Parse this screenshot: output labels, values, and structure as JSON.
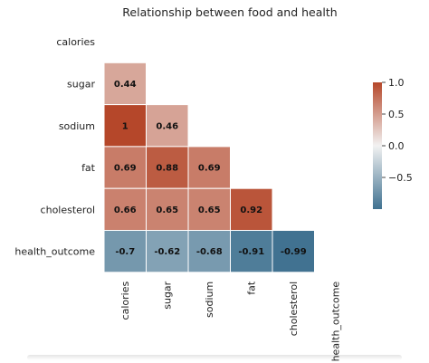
{
  "chart_data": {
    "type": "heatmap",
    "title": "Relationship between food and health",
    "variables": [
      "calories",
      "sugar",
      "sodium",
      "fat",
      "cholesterol",
      "health_outcome"
    ],
    "lower_triangle_values": [
      [],
      [
        0.44
      ],
      [
        1,
        0.46
      ],
      [
        0.69,
        0.88,
        0.69
      ],
      [
        0.66,
        0.65,
        0.65,
        0.92
      ],
      [
        -0.7,
        -0.62,
        -0.68,
        -0.91,
        -0.99
      ]
    ],
    "mask": "upper triangle and diagonal",
    "colorbar": {
      "range": [
        -1.0,
        1.0
      ],
      "ticks": [
        1.0,
        0.5,
        0.0,
        -0.5
      ],
      "tick_labels": [
        "1.0",
        "0.5",
        "0.0",
        "−0.5"
      ]
    },
    "colors": {
      "negative": "#3f7190",
      "neutral": "#f2f2f2",
      "positive": "#b5472a"
    }
  }
}
